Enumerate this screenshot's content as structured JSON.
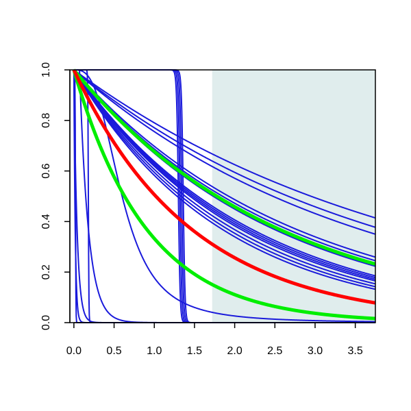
{
  "chart_data": {
    "type": "line",
    "title": "",
    "xlabel": "",
    "ylabel": "",
    "xlim": [
      -0.05,
      3.75
    ],
    "ylim": [
      0.0,
      1.0
    ],
    "x_ticks": [
      0.0,
      0.5,
      1.0,
      1.5,
      2.0,
      2.5,
      3.0,
      3.5
    ],
    "x_tick_labels": [
      "0.0",
      "0.5",
      "1.0",
      "1.5",
      "2.0",
      "2.5",
      "3.0",
      "3.5"
    ],
    "y_ticks": [
      0.0,
      0.2,
      0.4,
      0.6,
      0.8,
      1.0
    ],
    "y_tick_labels": [
      "0.0",
      "0.2",
      "0.4",
      "0.6",
      "0.8",
      "1.0"
    ],
    "grid": false,
    "shaded_region": {
      "x_from": 1.72,
      "x_to": 3.75,
      "color": "#e0eded"
    },
    "colors": {
      "blue": "#1a1adb",
      "red": "#ff0000",
      "green": "#00ee00",
      "shade": "#e0eded"
    },
    "series": [
      {
        "color": "blue",
        "width": 2,
        "kind": "exp",
        "rate": 0.235,
        "shift": 0
      },
      {
        "color": "blue",
        "width": 2,
        "kind": "exp",
        "rate": 0.26,
        "shift": 0
      },
      {
        "color": "blue",
        "width": 2,
        "kind": "exp",
        "rate": 0.28,
        "shift": 0
      },
      {
        "color": "blue",
        "width": 2,
        "kind": "exp",
        "rate": 0.36,
        "shift": 0
      },
      {
        "color": "blue",
        "width": 2,
        "kind": "exp",
        "rate": 0.375,
        "shift": 0
      },
      {
        "color": "blue",
        "width": 2,
        "kind": "exp",
        "rate": 0.39,
        "shift": 0
      },
      {
        "color": "blue",
        "width": 2,
        "kind": "exp",
        "rate": 0.4,
        "shift": 0
      },
      {
        "color": "blue",
        "width": 2,
        "kind": "exp",
        "rate": 0.45,
        "shift": 0
      },
      {
        "color": "blue",
        "width": 2,
        "kind": "exp",
        "rate": 0.46,
        "shift": 0
      },
      {
        "color": "blue",
        "width": 2,
        "kind": "exp",
        "rate": 0.47,
        "shift": 0
      },
      {
        "color": "blue",
        "width": 2,
        "kind": "exp",
        "rate": 0.48,
        "shift": 0
      },
      {
        "color": "blue",
        "width": 2,
        "kind": "exp",
        "rate": 0.5,
        "shift": 0
      },
      {
        "color": "blue",
        "width": 2,
        "kind": "exp",
        "rate": 0.52,
        "shift": 0
      },
      {
        "color": "blue",
        "width": 2,
        "kind": "exp",
        "rate": 0.54,
        "shift": 0
      },
      {
        "color": "blue",
        "width": 2,
        "kind": "step",
        "at": 1.3,
        "k": 90
      },
      {
        "color": "blue",
        "width": 2,
        "kind": "step",
        "at": 1.32,
        "k": 90
      },
      {
        "color": "blue",
        "width": 2,
        "kind": "step",
        "at": 1.34,
        "k": 90
      },
      {
        "color": "blue",
        "width": 2,
        "kind": "step",
        "at": 1.36,
        "k": 90
      },
      {
        "color": "blue",
        "width": 2,
        "kind": "step",
        "at": 0.18,
        "k": 300
      },
      {
        "color": "blue",
        "width": 2,
        "kind": "sigmoid",
        "a": 0.6,
        "b": 3.0
      },
      {
        "color": "blue",
        "width": 2,
        "kind": "exp",
        "rate": 9.0,
        "shift": 0.07
      },
      {
        "color": "blue",
        "width": 2,
        "kind": "exp",
        "rate": 60.0,
        "shift": 0
      },
      {
        "color": "blue",
        "width": 2,
        "kind": "step",
        "at": 0.02,
        "k": 400
      },
      {
        "color": "blue",
        "width": 2,
        "kind": "exp",
        "rate": 25.0,
        "shift": 0
      },
      {
        "color": "green",
        "width": 5,
        "kind": "exp",
        "rate": 0.39,
        "shift": 0
      },
      {
        "color": "green",
        "width": 5,
        "kind": "exp",
        "rate": 1.1,
        "shift": 0
      },
      {
        "color": "red",
        "width": 5,
        "kind": "exp",
        "rate": 0.68,
        "shift": 0
      }
    ]
  }
}
